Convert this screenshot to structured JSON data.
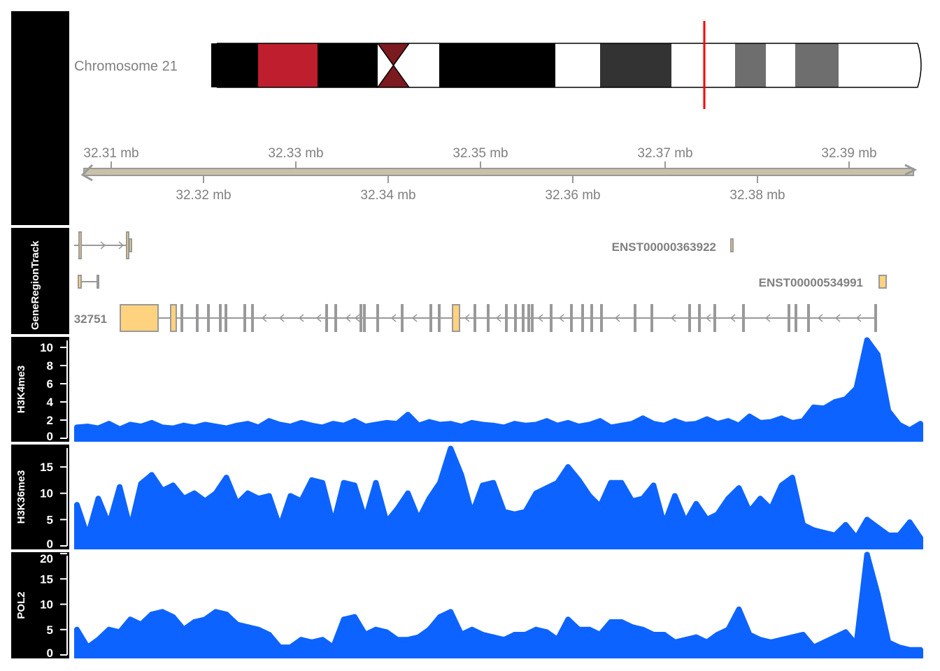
{
  "ideogram": {
    "label": "Chromosome 21",
    "marker_color": "#ff0000",
    "bands": [
      {
        "color": "#000000"
      },
      {
        "color": "#be1e2d"
      },
      {
        "color": "#000000"
      },
      {
        "color": "#7b1a1f",
        "centromere": true
      },
      {
        "color": "#ffffff"
      },
      {
        "color": "#000000"
      },
      {
        "color": "#ffffff"
      },
      {
        "color": "#333333"
      },
      {
        "color": "#ffffff"
      },
      {
        "color": "#6e6e6e"
      },
      {
        "color": "#ffffff"
      },
      {
        "color": "#6e6e6e"
      },
      {
        "color": "#ffffff"
      }
    ]
  },
  "genome_axis": {
    "top_labels": [
      "32.31 mb",
      "32.33 mb",
      "32.35 mb",
      "32.37 mb",
      "32.39 mb"
    ],
    "bottom_labels": [
      "32.32 mb",
      "32.34 mb",
      "32.36 mb",
      "32.38 mb"
    ]
  },
  "gene_track": {
    "title": "GeneRegionTrack",
    "transcripts": [
      {
        "label": "ENST00000363922"
      },
      {
        "label": "ENST00000534991"
      },
      {
        "label": "32751"
      }
    ],
    "exon_color": "#ffd27f"
  },
  "chart_data": [
    {
      "type": "area",
      "title": "H3K4me3",
      "xlim": [
        32.306,
        32.398
      ],
      "ylim": [
        0,
        11
      ],
      "yticks": [
        "0",
        "2",
        "4",
        "6",
        "8",
        "10"
      ],
      "color": "#0d63ff",
      "values": [
        1.2,
        1.3,
        1.1,
        1.6,
        1.0,
        1.5,
        1.3,
        1.7,
        1.2,
        1.1,
        1.4,
        1.2,
        1.5,
        1.3,
        1.1,
        1.4,
        1.6,
        1.2,
        1.9,
        1.5,
        1.3,
        1.7,
        1.4,
        1.2,
        1.6,
        1.4,
        1.9,
        1.3,
        1.5,
        1.7,
        1.6,
        2.6,
        1.4,
        1.8,
        1.5,
        1.6,
        1.3,
        1.7,
        1.5,
        1.4,
        1.2,
        1.6,
        1.4,
        1.5,
        1.9,
        1.4,
        1.7,
        1.3,
        1.5,
        1.9,
        1.2,
        1.4,
        1.6,
        2.2,
        1.6,
        1.4,
        1.9,
        1.5,
        1.6,
        2.1,
        1.6,
        1.9,
        1.4,
        2.4,
        1.7,
        1.8,
        2.2,
        1.7,
        1.9,
        3.4,
        3.3,
        4.0,
        4.3,
        5.5,
        10.8,
        9.2,
        3.0,
        1.5,
        0.9,
        1.6
      ]
    },
    {
      "type": "area",
      "title": "H3K36me3",
      "xlim": [
        32.306,
        32.398
      ],
      "ylim": [
        0,
        19
      ],
      "yticks": [
        "0",
        "5",
        "10",
        "15"
      ],
      "color": "#0d63ff",
      "values": [
        7.8,
        1.8,
        9.0,
        4.0,
        11.2,
        3.2,
        11.8,
        13.5,
        10.5,
        11.5,
        9.0,
        10.0,
        8.5,
        10.0,
        13.0,
        8.0,
        10.0,
        9.0,
        9.5,
        3.5,
        9.5,
        8.5,
        12.5,
        12.0,
        4.0,
        12.0,
        11.5,
        5.0,
        12.0,
        4.5,
        7.0,
        10.0,
        5.0,
        9.0,
        12.0,
        18.5,
        13.5,
        6.0,
        11.5,
        12.0,
        6.5,
        6.0,
        6.5,
        10.0,
        11.0,
        12.0,
        15.0,
        12.5,
        9.5,
        7.5,
        12.0,
        12.0,
        8.5,
        9.0,
        11.5,
        4.0,
        9.5,
        4.5,
        8.0,
        5.0,
        6.0,
        9.0,
        11.0,
        6.5,
        9.0,
        7.0,
        11.5,
        13.0,
        4.0,
        3.0,
        2.5,
        2.0,
        4.0,
        1.5,
        5.0,
        3.5,
        2.0,
        2.0,
        4.5,
        1.5
      ]
    },
    {
      "type": "area",
      "title": "POL2",
      "xlim": [
        32.306,
        32.398
      ],
      "ylim": [
        0,
        20
      ],
      "yticks": [
        "0",
        "5",
        "10",
        "15",
        "20"
      ],
      "color": "#0d63ff",
      "values": [
        5.0,
        1.5,
        3.0,
        5.0,
        4.5,
        7.0,
        6.0,
        8.0,
        8.5,
        7.5,
        5.0,
        6.5,
        7.0,
        8.5,
        8.0,
        6.0,
        5.5,
        5.0,
        4.0,
        1.5,
        1.5,
        3.0,
        2.5,
        3.0,
        1.5,
        7.0,
        7.5,
        4.0,
        5.0,
        4.5,
        3.0,
        3.0,
        3.5,
        5.0,
        7.5,
        8.5,
        4.0,
        5.0,
        4.0,
        3.5,
        3.0,
        4.0,
        4.0,
        5.0,
        4.5,
        3.0,
        7.0,
        5.0,
        5.0,
        4.0,
        6.5,
        6.5,
        5.5,
        5.0,
        4.0,
        4.0,
        2.5,
        3.0,
        3.5,
        2.5,
        4.0,
        5.0,
        9.0,
        4.0,
        3.0,
        2.5,
        3.0,
        3.5,
        4.0,
        1.5,
        2.5,
        3.5,
        4.5,
        2.0,
        19.8,
        12.0,
        2.5,
        1.5,
        1.0,
        1.0
      ]
    }
  ]
}
